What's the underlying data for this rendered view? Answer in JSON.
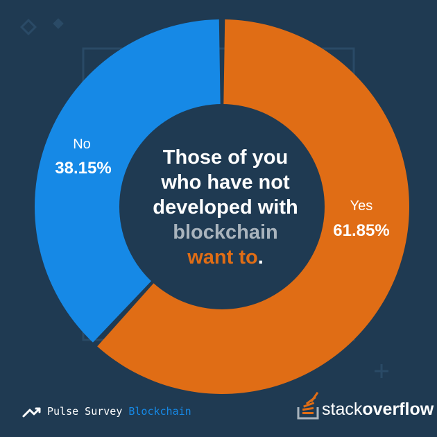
{
  "chart_data": {
    "type": "pie",
    "categories": [
      "Yes",
      "No"
    ],
    "values": [
      61.85,
      38.15
    ],
    "value_labels": [
      "61.85%",
      "38.15%"
    ],
    "title_lines": [
      {
        "text": "Those of you",
        "highlight": "white"
      },
      {
        "text": "who have not",
        "highlight": "white"
      },
      {
        "text": "developed with",
        "highlight": "white"
      },
      {
        "text": "blockchain",
        "highlight": "gray"
      },
      {
        "text": "want to",
        "highlight": "orange",
        "suffix": "."
      }
    ],
    "colors": {
      "Yes": "#e06d15",
      "No": "#1689e6"
    }
  },
  "theme": {
    "background": "#1f3a52",
    "gray": "#a9b4bd",
    "orange": "#e06d15",
    "blue": "#1689e6",
    "white": "#ffffff"
  },
  "footer": {
    "survey_label": "Pulse Survey",
    "topic": "Blockchain",
    "icon": "trending-up-icon",
    "brand_part1": "stack",
    "brand_part2": "overflow",
    "logo_icon": "stackoverflow-logo-icon"
  }
}
